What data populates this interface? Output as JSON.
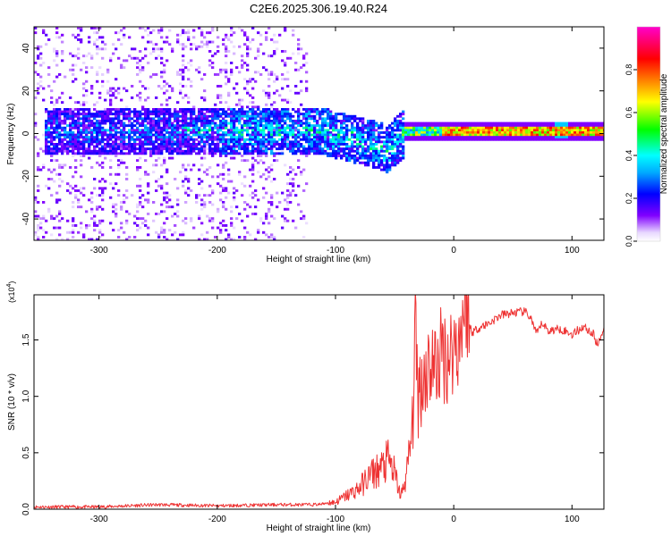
{
  "figure_title": "C2E6.2025.306.19.40.R24",
  "chart_data": [
    {
      "type": "heatmap",
      "title": "C2E6.2025.306.19.40.R24",
      "xlabel": "Height of straight line (km)",
      "ylabel": "Frequency (Hz)",
      "xlim": [
        -355,
        127
      ],
      "ylim": [
        -50,
        50
      ],
      "xticks": [
        -300,
        -200,
        -100,
        0,
        100
      ],
      "yticks": [
        -40,
        -20,
        0,
        20,
        40
      ],
      "colorbar": {
        "label": "Normalized spectral amplitude",
        "range": [
          0,
          1
        ],
        "ticks": [
          0.0,
          0.2,
          0.4,
          0.6,
          0.8
        ],
        "tick_labels": [
          "0.0",
          "0.2",
          "0.4",
          "0.6",
          "0.8"
        ],
        "colormap": [
          "#ffffff",
          "#8000ff",
          "#0000ff",
          "#00ffff",
          "#00ff00",
          "#ffff00",
          "#ff8000",
          "#ff0000",
          "#ff00ff"
        ]
      },
      "features": [
        {
          "name": "diffuse noise region",
          "x_range": [
            -355,
            -125
          ],
          "freq_range": [
            -50,
            50
          ],
          "amplitude": 0.08
        },
        {
          "name": "main spectral band",
          "x_range": [
            -345,
            -45
          ],
          "center_freq_hz": 2,
          "half_width_hz": 10,
          "amplitude": 0.25
        },
        {
          "name": "band dip",
          "x_range": [
            -110,
            -45
          ],
          "center_freq_hz": -8,
          "amplitude": 0.4
        },
        {
          "name": "narrow strong line",
          "x_range": [
            -20,
            127
          ],
          "center_freq_hz": 1.5,
          "half_width_hz": 1.5,
          "amplitude": 0.75
        },
        {
          "name": "peak blob",
          "x_center": 90,
          "center_freq_hz": 2,
          "amplitude": 0.35
        }
      ]
    },
    {
      "type": "line",
      "xlabel": "Height of straight line (km)",
      "ylabel": "SNR (10 * v/v)",
      "y_multiplier": "(x10^4)",
      "y_multiplier_base": "(x10",
      "y_multiplier_exp": "4",
      "xlim": [
        -355,
        127
      ],
      "ylim": [
        0,
        1.9
      ],
      "xticks": [
        -300,
        -200,
        -100,
        0,
        100
      ],
      "yticks": [
        0.0,
        0.5,
        1.0,
        1.5
      ],
      "ytick_labels": [
        "0.0",
        "0.5",
        "1.0",
        "1.5"
      ],
      "color": "#ee3333",
      "series": [
        {
          "name": "SNR",
          "x": [
            -355,
            -300,
            -250,
            -200,
            -150,
            -120,
            -100,
            -90,
            -80,
            -70,
            -60,
            -55,
            -50,
            -45,
            -40,
            -35,
            -33,
            -30,
            -25,
            -20,
            -15,
            -10,
            -5,
            0,
            5,
            10,
            13,
            20,
            30,
            40,
            50,
            60,
            65,
            70,
            75,
            80,
            90,
            100,
            110,
            118,
            122,
            127
          ],
          "y": [
            0.02,
            0.02,
            0.04,
            0.03,
            0.04,
            0.04,
            0.05,
            0.1,
            0.15,
            0.25,
            0.3,
            0.35,
            0.25,
            0.1,
            0.3,
            0.7,
            1.6,
            1.05,
            1.2,
            1.3,
            1.25,
            1.4,
            1.35,
            1.45,
            1.5,
            1.9,
            1.55,
            1.6,
            1.65,
            1.72,
            1.74,
            1.75,
            1.7,
            1.55,
            1.65,
            1.58,
            1.6,
            1.55,
            1.62,
            1.55,
            1.45,
            1.62
          ]
        }
      ]
    }
  ]
}
